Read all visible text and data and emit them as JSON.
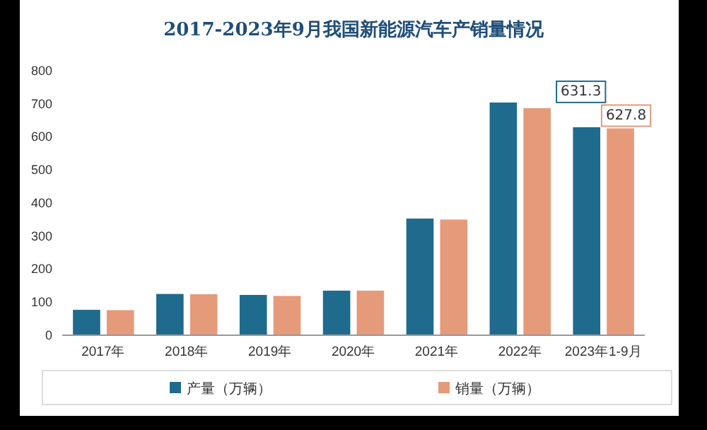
{
  "chart_data": {
    "type": "bar",
    "title": "2017-2023年9月我国新能源汽车产销量情况",
    "categories": [
      "2017年",
      "2018年",
      "2019年",
      "2020年",
      "2021年",
      "2022年",
      "2023年1-9月"
    ],
    "series": [
      {
        "name": "产量（万辆）",
        "color": "#1f6b8e",
        "values": [
          79,
          127,
          124,
          137,
          355,
          706,
          631.3
        ],
        "value_labels": [
          null,
          null,
          null,
          null,
          null,
          null,
          "631.3"
        ]
      },
      {
        "name": "销量（万辆）",
        "color": "#e59a7a",
        "values": [
          78,
          126,
          121,
          137,
          352,
          689,
          627.8
        ],
        "value_labels": [
          null,
          null,
          null,
          null,
          null,
          null,
          "627.8"
        ]
      }
    ],
    "ylim": [
      0,
      800
    ],
    "yticks": [
      0,
      100,
      200,
      300,
      400,
      500,
      600,
      700,
      800
    ],
    "grid": false,
    "legend": "bottom"
  }
}
